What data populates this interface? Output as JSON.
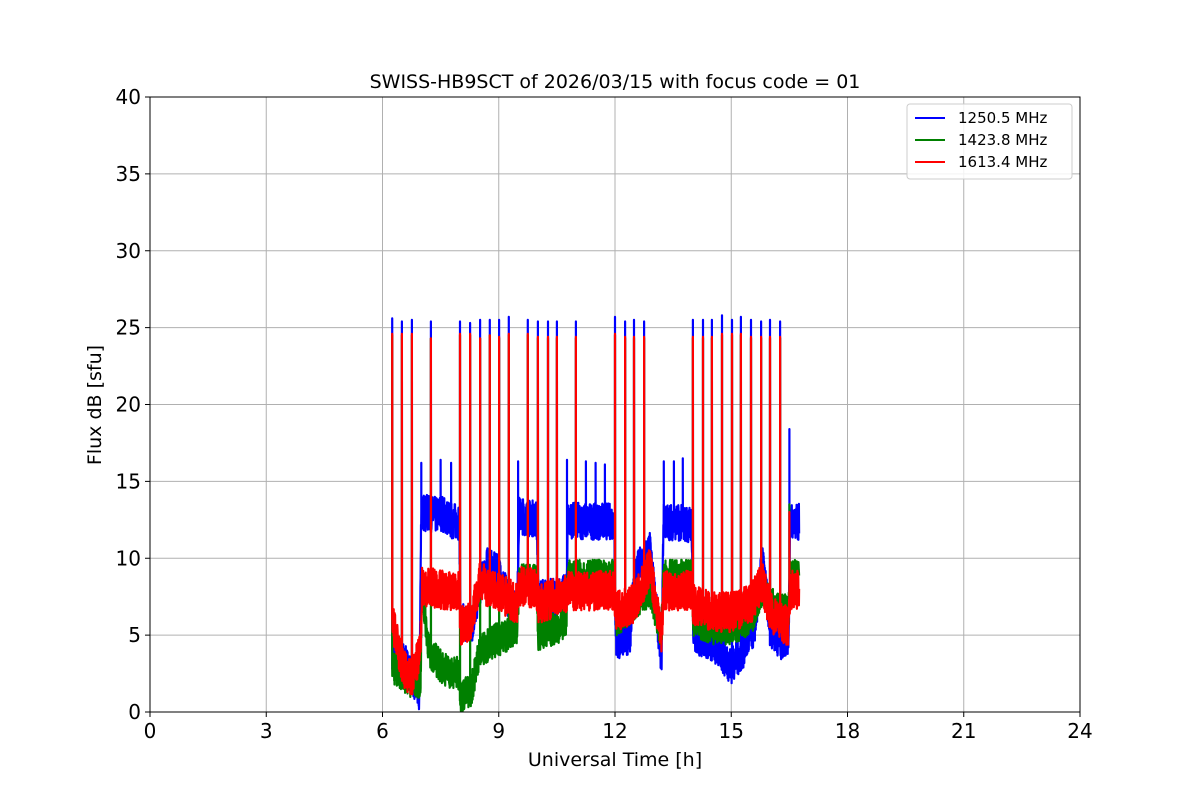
{
  "chart_data": {
    "type": "line",
    "title": "SWISS-HB9SCT of 2026/03/15 with focus code = 01",
    "xlabel": "Universal Time [h]",
    "ylabel": "Flux dB [sfu]",
    "xlim": [
      0,
      24
    ],
    "ylim": [
      0,
      40
    ],
    "xticks": [
      0,
      3,
      6,
      9,
      12,
      15,
      18,
      21,
      24
    ],
    "yticks": [
      0,
      5,
      10,
      15,
      20,
      25,
      30,
      35,
      40
    ],
    "grid": true,
    "legend_position": "top-right",
    "series": [
      {
        "name": "1250.5 MHz",
        "color": "#0000ff",
        "noise": 1.2,
        "baseline": [
          [
            6.25,
            4
          ],
          [
            6.5,
            3.5
          ],
          [
            6.75,
            2.5
          ],
          [
            6.95,
            1
          ],
          [
            7.0,
            13
          ],
          [
            7.4,
            12.8
          ],
          [
            7.5,
            13
          ],
          [
            7.8,
            12.4
          ],
          [
            7.98,
            12.4
          ],
          [
            8.02,
            6
          ],
          [
            8.3,
            5.5
          ],
          [
            8.5,
            8
          ],
          [
            8.7,
            9.5
          ],
          [
            9.0,
            9
          ],
          [
            9.3,
            7
          ],
          [
            9.48,
            6.5
          ],
          [
            9.52,
            12.8
          ],
          [
            9.8,
            12.6
          ],
          [
            9.98,
            12.6
          ],
          [
            10.02,
            7.5
          ],
          [
            10.5,
            7.5
          ],
          [
            10.75,
            7.8
          ],
          [
            10.78,
            12.5
          ],
          [
            11.2,
            12.4
          ],
          [
            11.98,
            12.4
          ],
          [
            12.02,
            4.5
          ],
          [
            12.4,
            5
          ],
          [
            12.5,
            9
          ],
          [
            12.9,
            10.5
          ],
          [
            13.2,
            3.5
          ],
          [
            13.25,
            12.4
          ],
          [
            13.7,
            12.3
          ],
          [
            13.98,
            12.2
          ],
          [
            14.02,
            5
          ],
          [
            14.5,
            4.5
          ],
          [
            15.0,
            3
          ],
          [
            15.3,
            4
          ],
          [
            15.6,
            5.5
          ],
          [
            15.8,
            10
          ],
          [
            16.0,
            5.5
          ],
          [
            16.3,
            4.5
          ],
          [
            16.48,
            5
          ],
          [
            16.52,
            12.4
          ],
          [
            16.75,
            12.4
          ]
        ],
        "spikes": [
          [
            6.25,
            25.6
          ],
          [
            6.5,
            25.4
          ],
          [
            6.76,
            25.5
          ],
          [
            7.0,
            16.2
          ],
          [
            7.25,
            25.4
          ],
          [
            7.5,
            16.4
          ],
          [
            7.77,
            16.2
          ],
          [
            8.0,
            25.4
          ],
          [
            8.26,
            25.3
          ],
          [
            8.52,
            25.5
          ],
          [
            8.77,
            25.5
          ],
          [
            9.01,
            25.5
          ],
          [
            9.26,
            25.7
          ],
          [
            9.5,
            16.3
          ],
          [
            9.75,
            25.5
          ],
          [
            10.01,
            25.4
          ],
          [
            10.27,
            25.4
          ],
          [
            10.5,
            25.4
          ],
          [
            10.76,
            16.4
          ],
          [
            10.99,
            25.4
          ],
          [
            11.25,
            16.3
          ],
          [
            11.5,
            16.2
          ],
          [
            11.74,
            16.1
          ],
          [
            12.0,
            25.7
          ],
          [
            12.26,
            25.4
          ],
          [
            12.49,
            25.5
          ],
          [
            12.75,
            25.4
          ],
          [
            13.26,
            16.3
          ],
          [
            13.52,
            16.3
          ],
          [
            13.75,
            16.5
          ],
          [
            14.01,
            25.5
          ],
          [
            14.27,
            25.5
          ],
          [
            14.5,
            25.5
          ],
          [
            14.76,
            25.8
          ],
          [
            15.02,
            25.5
          ],
          [
            15.25,
            25.7
          ],
          [
            15.51,
            25.5
          ],
          [
            15.77,
            25.4
          ],
          [
            16.0,
            25.5
          ],
          [
            16.26,
            25.4
          ],
          [
            16.5,
            18.4
          ]
        ]
      },
      {
        "name": "1423.8 MHz",
        "color": "#008000",
        "noise": 1.1,
        "baseline": [
          [
            6.25,
            3
          ],
          [
            6.5,
            2.5
          ],
          [
            6.75,
            2
          ],
          [
            6.98,
            2
          ],
          [
            7.02,
            8
          ],
          [
            7.2,
            4
          ],
          [
            7.5,
            3
          ],
          [
            7.8,
            2.5
          ],
          [
            7.98,
            2.5
          ],
          [
            8.02,
            1
          ],
          [
            8.3,
            1.5
          ],
          [
            8.5,
            4
          ],
          [
            8.8,
            4.5
          ],
          [
            9.2,
            5
          ],
          [
            9.48,
            5.5
          ],
          [
            9.52,
            8.5
          ],
          [
            9.98,
            8.5
          ],
          [
            10.02,
            5
          ],
          [
            10.5,
            5.5
          ],
          [
            10.75,
            6
          ],
          [
            10.78,
            8.8
          ],
          [
            11.98,
            8.8
          ],
          [
            12.02,
            6
          ],
          [
            12.5,
            7
          ],
          [
            12.9,
            8
          ],
          [
            13.2,
            5
          ],
          [
            13.25,
            8.8
          ],
          [
            13.98,
            8.8
          ],
          [
            14.02,
            6
          ],
          [
            14.5,
            5.5
          ],
          [
            15.0,
            5.5
          ],
          [
            15.5,
            6
          ],
          [
            15.8,
            8
          ],
          [
            16.0,
            7
          ],
          [
            16.48,
            6.5
          ],
          [
            16.52,
            8.8
          ],
          [
            16.75,
            8.8
          ]
        ],
        "spikes": [
          [
            6.25,
            24.5
          ],
          [
            6.5,
            24.5
          ],
          [
            6.76,
            24.5
          ],
          [
            7.25,
            24.3
          ],
          [
            8.0,
            24.5
          ],
          [
            8.26,
            24.5
          ],
          [
            8.52,
            24.3
          ],
          [
            8.77,
            24.5
          ],
          [
            9.01,
            24.3
          ],
          [
            9.26,
            24.5
          ],
          [
            9.75,
            24.5
          ],
          [
            10.01,
            24.3
          ],
          [
            10.27,
            24.3
          ],
          [
            10.5,
            24.3
          ],
          [
            10.99,
            24.3
          ],
          [
            12.0,
            24.5
          ],
          [
            12.26,
            24.3
          ],
          [
            12.49,
            24.3
          ],
          [
            12.75,
            24.3
          ],
          [
            14.01,
            24.3
          ],
          [
            14.27,
            24.3
          ],
          [
            14.5,
            24.3
          ],
          [
            14.76,
            24.5
          ],
          [
            15.02,
            24.5
          ],
          [
            15.25,
            24.5
          ],
          [
            15.51,
            24.3
          ],
          [
            15.77,
            24.3
          ],
          [
            16.0,
            24.3
          ],
          [
            16.26,
            24.3
          ],
          [
            16.5,
            13.5
          ]
        ]
      },
      {
        "name": "1613.4 MHz",
        "color": "#ff0000",
        "noise": 1.3,
        "baseline": [
          [
            6.25,
            6
          ],
          [
            6.5,
            3
          ],
          [
            6.75,
            2
          ],
          [
            6.98,
            4
          ],
          [
            7.02,
            8.2
          ],
          [
            7.5,
            8
          ],
          [
            7.98,
            7.8
          ],
          [
            8.02,
            5.5
          ],
          [
            8.3,
            6
          ],
          [
            8.5,
            8.5
          ],
          [
            8.8,
            8
          ],
          [
            9.2,
            7.5
          ],
          [
            9.48,
            7
          ],
          [
            9.52,
            8.2
          ],
          [
            9.98,
            8
          ],
          [
            10.02,
            7
          ],
          [
            10.5,
            7.5
          ],
          [
            10.75,
            7.8
          ],
          [
            10.78,
            7.9
          ],
          [
            11.98,
            7.9
          ],
          [
            12.02,
            6.5
          ],
          [
            12.5,
            7
          ],
          [
            12.9,
            9.5
          ],
          [
            13.2,
            5
          ],
          [
            13.25,
            7.9
          ],
          [
            13.98,
            7.9
          ],
          [
            14.02,
            7
          ],
          [
            14.5,
            6.5
          ],
          [
            15.0,
            6.5
          ],
          [
            15.5,
            7
          ],
          [
            15.8,
            8.5
          ],
          [
            16.0,
            6.5
          ],
          [
            16.48,
            5.5
          ],
          [
            16.52,
            7.9
          ],
          [
            16.75,
            7.9
          ]
        ],
        "spikes": [
          [
            6.25,
            24.6
          ],
          [
            6.5,
            24.6
          ],
          [
            6.76,
            24.6
          ],
          [
            7.25,
            24.3
          ],
          [
            8.0,
            24.6
          ],
          [
            8.26,
            24.6
          ],
          [
            8.52,
            24.3
          ],
          [
            8.77,
            24.5
          ],
          [
            9.01,
            24.4
          ],
          [
            9.26,
            24.6
          ],
          [
            9.75,
            24.6
          ],
          [
            10.01,
            24.4
          ],
          [
            10.27,
            24.4
          ],
          [
            10.5,
            24.4
          ],
          [
            10.99,
            24.4
          ],
          [
            12.0,
            24.6
          ],
          [
            12.26,
            24.4
          ],
          [
            12.49,
            24.4
          ],
          [
            12.75,
            24.4
          ],
          [
            14.01,
            24.4
          ],
          [
            14.27,
            24.4
          ],
          [
            14.5,
            24.4
          ],
          [
            14.76,
            24.6
          ],
          [
            15.02,
            24.6
          ],
          [
            15.25,
            24.6
          ],
          [
            15.51,
            24.4
          ],
          [
            15.77,
            24.4
          ],
          [
            16.0,
            24.4
          ],
          [
            16.26,
            24.4
          ],
          [
            16.5,
            13.0
          ]
        ]
      }
    ]
  }
}
